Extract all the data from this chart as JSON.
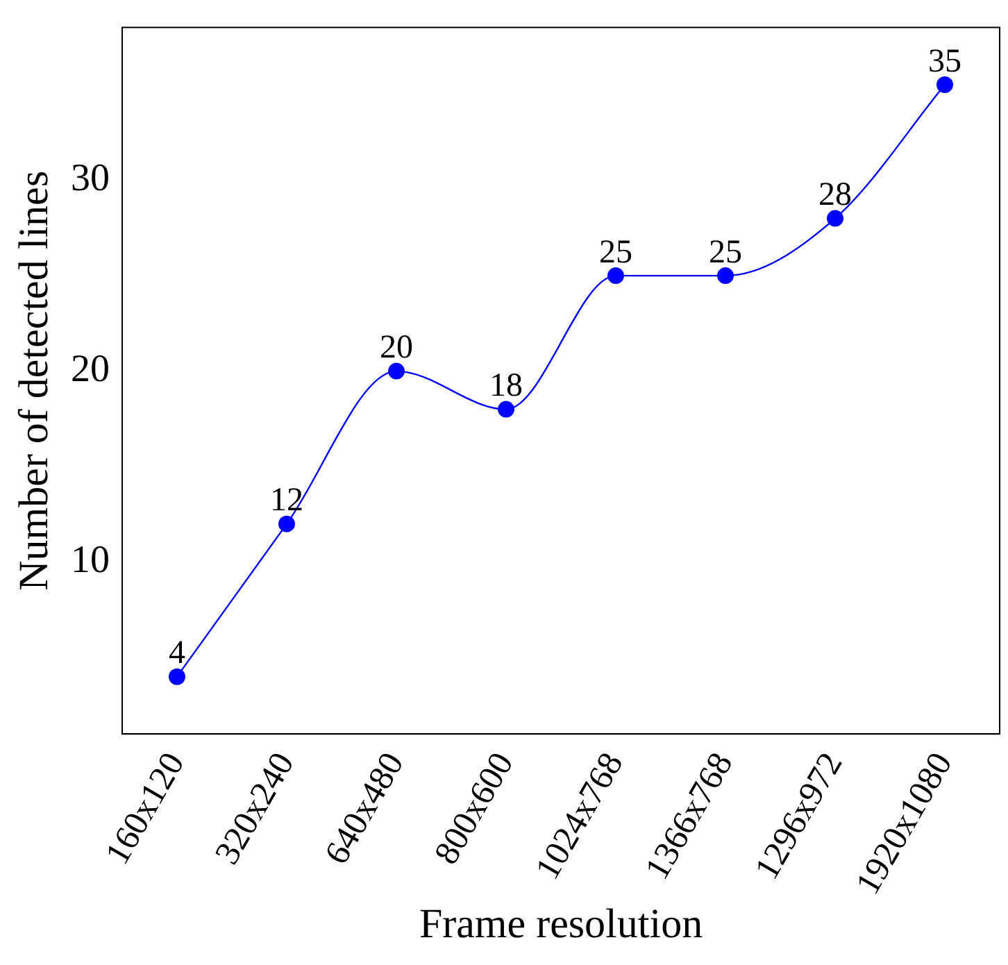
{
  "chart_data": {
    "type": "line",
    "xlabel": "Frame resolution",
    "ylabel": "Number of detected lines",
    "categories": [
      "160x120",
      "320x240",
      "640x480",
      "800x600",
      "1024x768",
      "1366x768",
      "1296x972",
      "1920x1080"
    ],
    "values": [
      4,
      12,
      20,
      18,
      25,
      25,
      28,
      35
    ],
    "color": "#0000ff",
    "ylim": [
      1,
      38
    ],
    "yticks": [
      10,
      20,
      30
    ],
    "grid": false,
    "legend": false,
    "marker": "circle",
    "line_style": "solid",
    "data_labels": true
  }
}
